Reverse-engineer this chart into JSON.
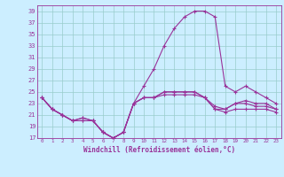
{
  "title": "",
  "xlabel": "Windchill (Refroidissement éolien,°C)",
  "bg_color": "#cceeff",
  "grid_color": "#99cccc",
  "line_color": "#993399",
  "x_ticks": [
    0,
    1,
    2,
    3,
    4,
    5,
    6,
    7,
    8,
    9,
    10,
    11,
    12,
    13,
    14,
    15,
    16,
    17,
    18,
    19,
    20,
    21,
    22,
    23
  ],
  "y_ticks": [
    17,
    19,
    21,
    23,
    25,
    27,
    29,
    31,
    33,
    35,
    37,
    39
  ],
  "xlim": [
    -0.5,
    23.5
  ],
  "ylim": [
    17,
    40
  ],
  "line_high": [
    24,
    22,
    21,
    20,
    20.5,
    20,
    18,
    17,
    18,
    23,
    26,
    29,
    33,
    36,
    38,
    39,
    39,
    38,
    26,
    25,
    26,
    25,
    24,
    23
  ],
  "line_mid1": [
    24,
    22,
    21,
    20,
    20.5,
    20,
    18,
    17,
    18,
    23,
    24,
    24,
    25,
    25,
    25,
    25,
    24,
    22.5,
    22,
    23,
    23.5,
    23,
    23,
    22
  ],
  "line_mid2": [
    24,
    22,
    21,
    20,
    20,
    20,
    18,
    17,
    18,
    23,
    24,
    24,
    25,
    25,
    25,
    25,
    24,
    22,
    22,
    23,
    23,
    22.5,
    22.5,
    22
  ],
  "line_low": [
    24,
    22,
    21,
    20,
    20,
    20,
    18,
    17,
    18,
    23,
    24,
    24,
    24.5,
    24.5,
    24.5,
    24.5,
    24,
    22,
    21.5,
    22,
    22,
    22,
    22,
    21.5
  ]
}
